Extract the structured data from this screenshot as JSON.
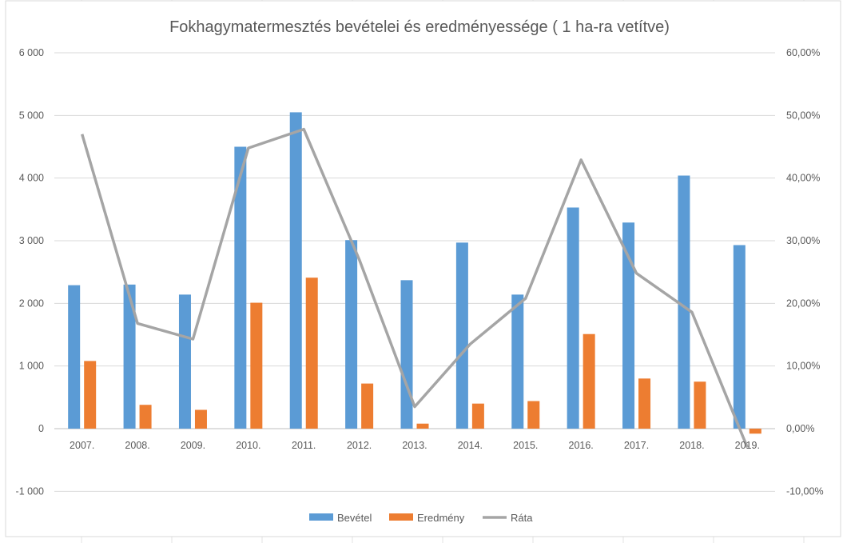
{
  "chart_data": {
    "type": "bar",
    "title": "Fokhagymatermesztés bevételei és eredményessége ( 1 ha-ra vetítve)",
    "categories": [
      "2007.",
      "2008.",
      "2009.",
      "2010.",
      "2011.",
      "2012.",
      "2013.",
      "2014.",
      "2015.",
      "2016.",
      "2017.",
      "2018.",
      "2019."
    ],
    "series": [
      {
        "name": "Bevétel",
        "type": "bar",
        "axis": "left",
        "color": "#5b9bd5",
        "values": [
          2290,
          2300,
          2140,
          4500,
          5050,
          3010,
          2370,
          2970,
          2140,
          3530,
          3290,
          4040,
          2930
        ]
      },
      {
        "name": "Eredmény",
        "type": "bar",
        "axis": "left",
        "color": "#ed7d31",
        "values": [
          1080,
          380,
          300,
          2010,
          2410,
          720,
          80,
          400,
          440,
          1510,
          800,
          750,
          -80
        ]
      },
      {
        "name": "Ráta",
        "type": "line",
        "axis": "right",
        "color": "#a5a5a5",
        "values": [
          0.47,
          0.168,
          0.143,
          0.448,
          0.478,
          0.27,
          0.035,
          0.135,
          0.208,
          0.429,
          0.248,
          0.186,
          -0.03
        ]
      }
    ],
    "y_left": {
      "min": -1000,
      "max": 6000,
      "step": 1000,
      "tick_labels": [
        "-1 000",
        "0",
        "1 000",
        "2 000",
        "3 000",
        "4 000",
        "5 000",
        "6 000"
      ]
    },
    "y_right": {
      "min": -0.1,
      "max": 0.6,
      "step": 0.1,
      "tick_labels": [
        "-10,00%",
        "0,00%",
        "10,00%",
        "20,00%",
        "30,00%",
        "40,00%",
        "50,00%",
        "60,00%"
      ]
    },
    "gridlines": true,
    "legend": {
      "position": "bottom",
      "items": [
        "Bevétel",
        "Eredmény",
        "Ráta"
      ]
    }
  }
}
